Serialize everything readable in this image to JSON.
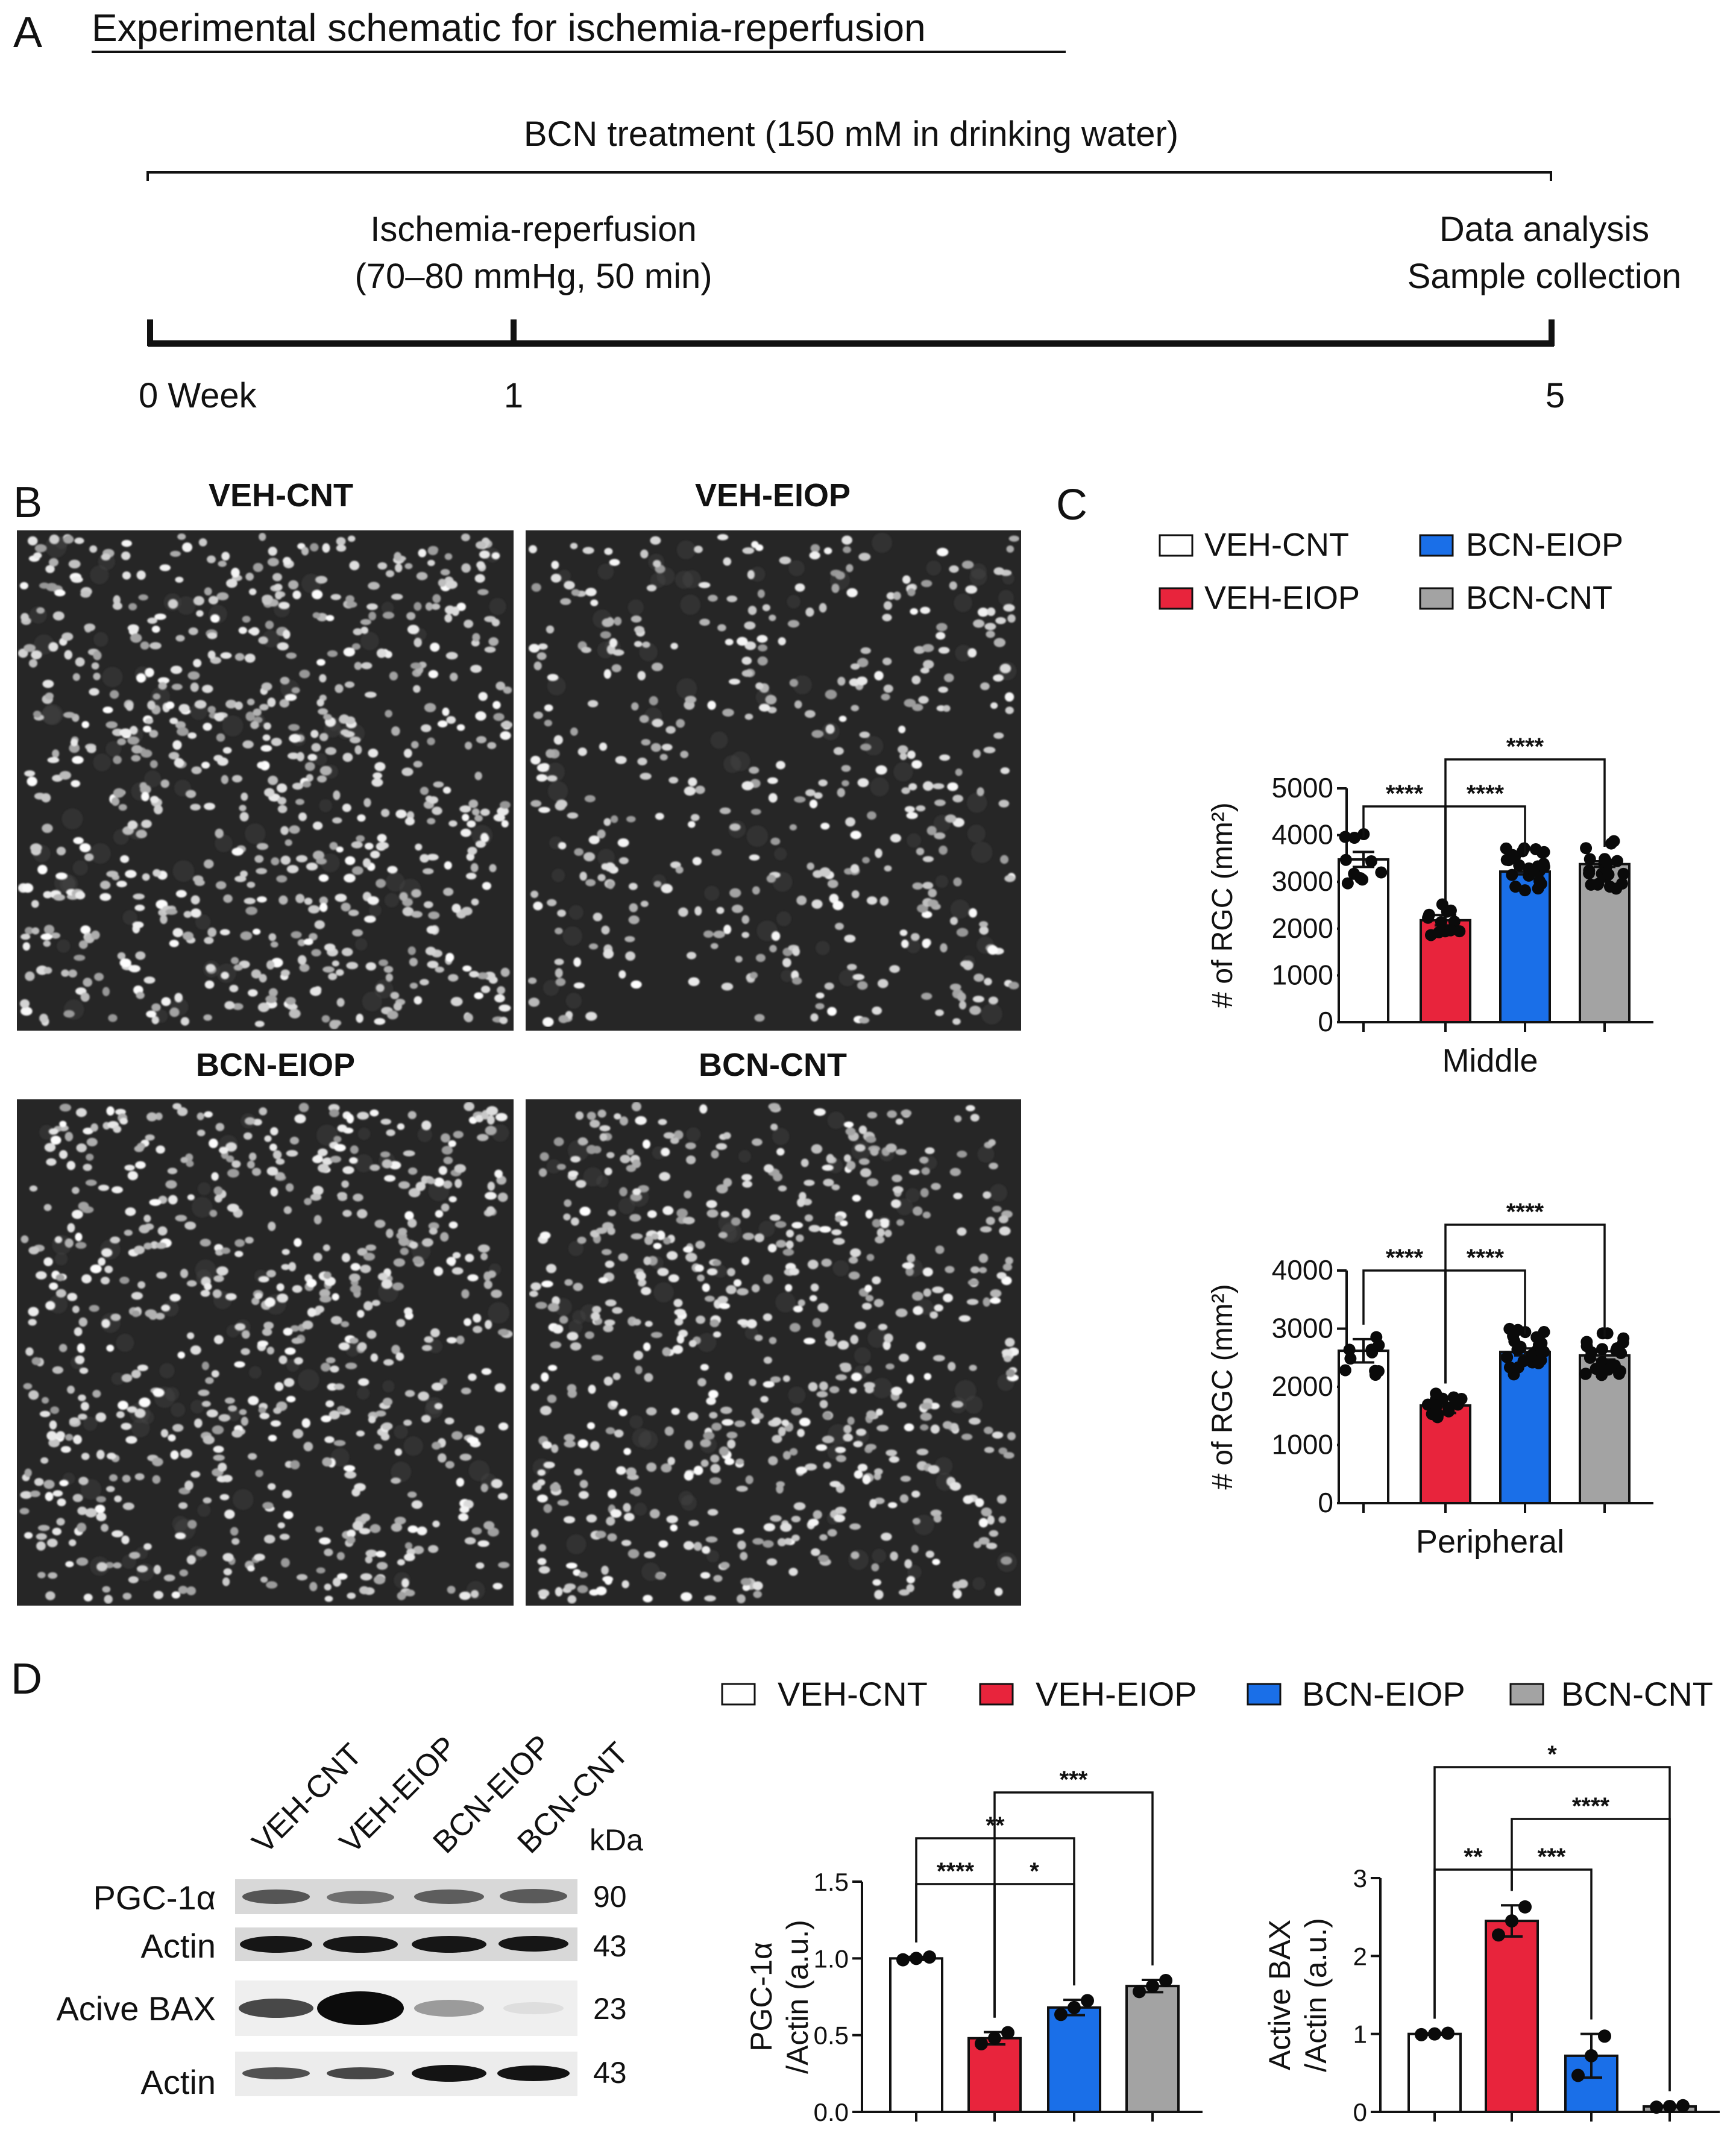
{
  "panelA": {
    "letter": "A",
    "title": "Experimental schematic for ischemia-reperfusion",
    "treatment": "BCN treatment (150 mM in drinking water)",
    "event_line1": "Ischemia-reperfusion",
    "event_line2": "(70–80 mmHg, 50 min)",
    "end_line1": "Data analysis",
    "end_line2": "Sample collection",
    "tick_start": "0 Week",
    "tick_mid": "1",
    "tick_end": "5"
  },
  "panelB": {
    "letter": "B",
    "labels": [
      "VEH-CNT",
      "VEH-EIOP",
      "BCN-EIOP",
      "BCN-CNT"
    ]
  },
  "panelC": {
    "letter": "C",
    "legend": [
      "VEH-CNT",
      "VEH-EIOP",
      "BCN-EIOP",
      "BCN-CNT"
    ]
  },
  "panelD": {
    "letter": "D",
    "lanes": [
      "VEH-CNT",
      "VEH-EIOP",
      "BCN-EIOP",
      "BCN-CNT"
    ],
    "kda_header": "kDa",
    "blots": [
      {
        "label": "PGC-1α",
        "kda": "90"
      },
      {
        "label": "Actin",
        "kda": "43"
      },
      {
        "label": "Acive BAX",
        "kda": "23"
      },
      {
        "label": "Actin",
        "kda": "43"
      }
    ],
    "legend": [
      "VEH-CNT",
      "VEH-EIOP",
      "BCN-EIOP",
      "BCN-CNT"
    ]
  },
  "colors": {
    "VEH-CNT": "#ffffff",
    "VEH-EIOP": "#e8243c",
    "BCN-EIOP": "#1a6fe8",
    "BCN-CNT": "#a3a3a3"
  },
  "chart_data": [
    {
      "id": "middle",
      "type": "bar",
      "title": "",
      "xlabel": "Middle",
      "ylabel": "# of RGC (mm²)",
      "ylim": [
        0,
        5000
      ],
      "yticks": [
        "0",
        "1000",
        "2000",
        "3000",
        "4000",
        "5000"
      ],
      "categories": [
        "VEH-CNT",
        "VEH-EIOP",
        "BCN-EIOP",
        "BCN-CNT"
      ],
      "values": [
        3480,
        2180,
        3220,
        3380
      ],
      "errors": [
        160,
        110,
        60,
        60
      ],
      "significance": [
        {
          "from": 0,
          "to": 1,
          "label": "****"
        },
        {
          "from": 1,
          "to": 2,
          "label": "****"
        },
        {
          "from": 1,
          "to": 3,
          "label": "****"
        }
      ]
    },
    {
      "id": "peripheral",
      "type": "bar",
      "title": "",
      "xlabel": "Peripheral",
      "ylabel": "# of RGC (mm²)",
      "ylim": [
        0,
        4000
      ],
      "yticks": [
        "0",
        "1000",
        "2000",
        "3000",
        "4000"
      ],
      "categories": [
        "VEH-CNT",
        "VEH-EIOP",
        "BCN-EIOP",
        "BCN-CNT"
      ],
      "values": [
        2620,
        1680,
        2600,
        2540
      ],
      "errors": [
        200,
        130,
        60,
        70
      ],
      "significance": [
        {
          "from": 0,
          "to": 1,
          "label": "****"
        },
        {
          "from": 1,
          "to": 2,
          "label": "****"
        },
        {
          "from": 1,
          "to": 3,
          "label": "****"
        }
      ]
    },
    {
      "id": "pgc",
      "type": "bar",
      "title": "",
      "xlabel": "",
      "ylabel": "PGC-1α /Actin (a.u.)",
      "ylabel_lines": [
        "PGC-1α",
        "/Actin (a.u.)"
      ],
      "ylim": [
        0,
        1.5
      ],
      "yticks": [
        "0.0",
        "0.5",
        "1.0",
        "1.5"
      ],
      "categories": [
        "VEH-CNT",
        "VEH-EIOP",
        "BCN-EIOP",
        "BCN-CNT"
      ],
      "values": [
        1.0,
        0.48,
        0.68,
        0.82
      ],
      "errors": [
        0.01,
        0.04,
        0.05,
        0.04
      ],
      "significance": [
        {
          "from": 0,
          "to": 1,
          "label": "****"
        },
        {
          "from": 1,
          "to": 2,
          "label": "*"
        },
        {
          "from": 0,
          "to": 2,
          "label": "**"
        },
        {
          "from": 1,
          "to": 3,
          "label": "***"
        }
      ]
    },
    {
      "id": "bax",
      "type": "bar",
      "title": "",
      "xlabel": "",
      "ylabel": "Active BAX /Actin (a.u.)",
      "ylabel_lines": [
        "Active BAX",
        "/Actin (a.u.)"
      ],
      "ylim": [
        0,
        3
      ],
      "yticks": [
        "0",
        "1",
        "2",
        "3"
      ],
      "categories": [
        "VEH-CNT",
        "VEH-EIOP",
        "BCN-EIOP",
        "BCN-CNT"
      ],
      "values": [
        1.0,
        2.45,
        0.72,
        0.07
      ],
      "errors": [
        0.01,
        0.2,
        0.28,
        0.01
      ],
      "significance": [
        {
          "from": 0,
          "to": 1,
          "label": "**"
        },
        {
          "from": 1,
          "to": 2,
          "label": "***"
        },
        {
          "from": 1,
          "to": 3,
          "label": "****"
        },
        {
          "from": 0,
          "to": 3,
          "label": "*"
        }
      ]
    }
  ]
}
